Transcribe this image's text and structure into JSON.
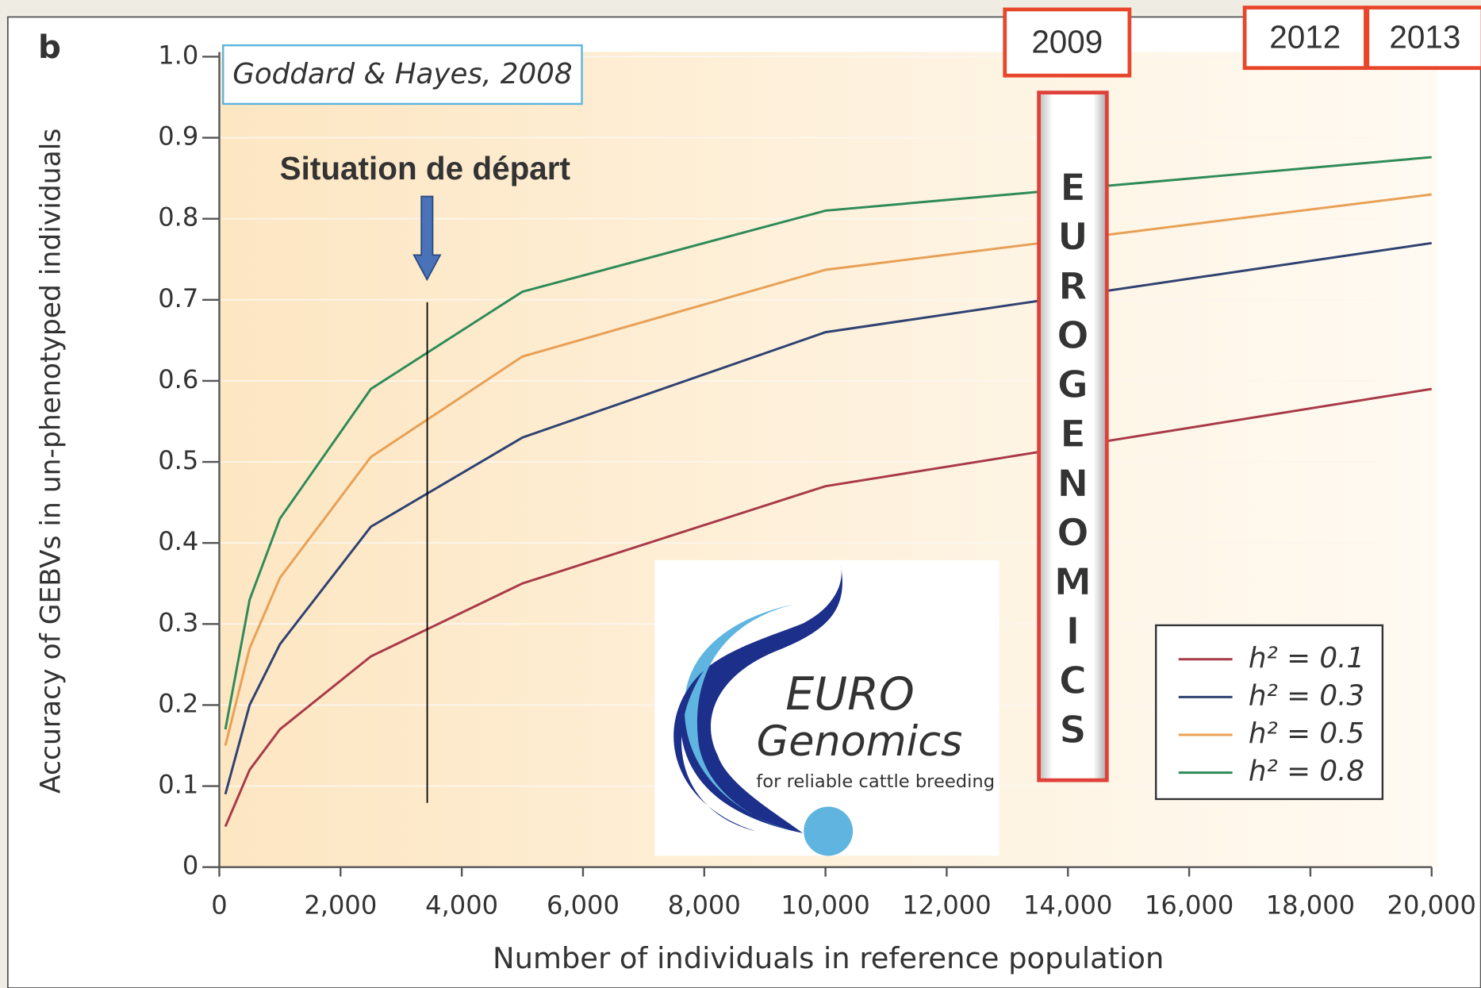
{
  "chart_data": {
    "type": "line",
    "panel_label": "b",
    "x_label": "Number of individuals in reference population",
    "y_label": "Accuracy of GEBVs in un-phenotyped individuals",
    "x": [
      100,
      500,
      1000,
      2500,
      5000,
      10000,
      20000
    ],
    "series": [
      {
        "name": "h² = 0.1",
        "color": "#a83a48",
        "values": [
          0.05,
          0.12,
          0.17,
          0.26,
          0.35,
          0.47,
          0.59
        ]
      },
      {
        "name": "h² = 0.3",
        "color": "#2f4272",
        "values": [
          0.09,
          0.2,
          0.275,
          0.42,
          0.53,
          0.66,
          0.77
        ]
      },
      {
        "name": "h² = 0.5",
        "color": "#e8a055",
        "values": [
          0.15,
          0.27,
          0.357,
          0.506,
          0.63,
          0.737,
          0.83
        ]
      },
      {
        "name": "h² = 0.8",
        "color": "#2e8b57",
        "values": [
          0.17,
          0.33,
          0.43,
          0.59,
          0.71,
          0.81,
          0.876
        ]
      }
    ],
    "xlim": [
      0,
      20000
    ],
    "xticks": [
      0,
      {
        "value": 2000,
        "label": "2,000"
      },
      {
        "value": 4000,
        "label": "4,000"
      },
      {
        "value": 6000,
        "label": "6,000"
      },
      {
        "value": 8000,
        "label": "8,000"
      },
      {
        "value": 10000,
        "label": "10,000"
      },
      {
        "value": 12000,
        "label": "12,000"
      },
      {
        "value": 14000,
        "label": "14,000"
      },
      {
        "value": 16000,
        "label": "16,000"
      },
      {
        "value": 18000,
        "label": "18,000"
      },
      {
        "value": 20000,
        "label": "20,000"
      }
    ],
    "ylim": [
      0,
      1
    ],
    "yticks": [
      0,
      0.1,
      0.2,
      0.3,
      0.4,
      0.5,
      0.6,
      0.7,
      0.8,
      0.9,
      {
        "value": 1,
        "label": "1.0"
      }
    ],
    "grid": true,
    "legend": "lower right",
    "citation": "Goddard & Hayes, 2008",
    "start_marker": {
      "text": "Situation de départ",
      "x": 3430
    },
    "years": [
      "2009",
      "2012",
      "2013"
    ],
    "banner": "EUROGENOMICS",
    "logo": {
      "line1": "EURO",
      "line2": "Genomics",
      "tagline": "for reliable cattle breeding"
    }
  }
}
